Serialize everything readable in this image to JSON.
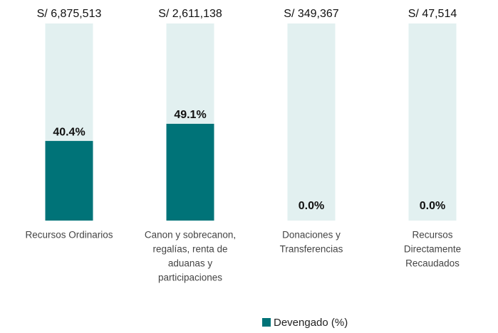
{
  "chart_data": {
    "type": "bar",
    "categories": [
      [
        "Recursos Ordinarios"
      ],
      [
        "Canon y sobrecanon,",
        "regalías, renta de",
        "aduanas y",
        "participaciones"
      ],
      [
        "Donaciones y",
        "Transferencias"
      ],
      [
        "Recursos",
        "Directamente",
        "Recaudados"
      ]
    ],
    "totals": [
      6875513,
      2611138,
      349367,
      47514
    ],
    "total_labels": [
      "S/ 6,875,513",
      "S/ 2,611,138",
      "S/ 349,367",
      "S/ 47,514"
    ],
    "series": [
      {
        "name": "Devengado (%)",
        "color": "#007378",
        "values": [
          40.4,
          49.1,
          0,
          0
        ],
        "value_labels": [
          "40.4%",
          "49.1%",
          "0.0%",
          "0.0%"
        ]
      }
    ],
    "track_color": "#e2f0f0",
    "ylim": [
      0,
      100
    ],
    "legend": "bottom"
  }
}
